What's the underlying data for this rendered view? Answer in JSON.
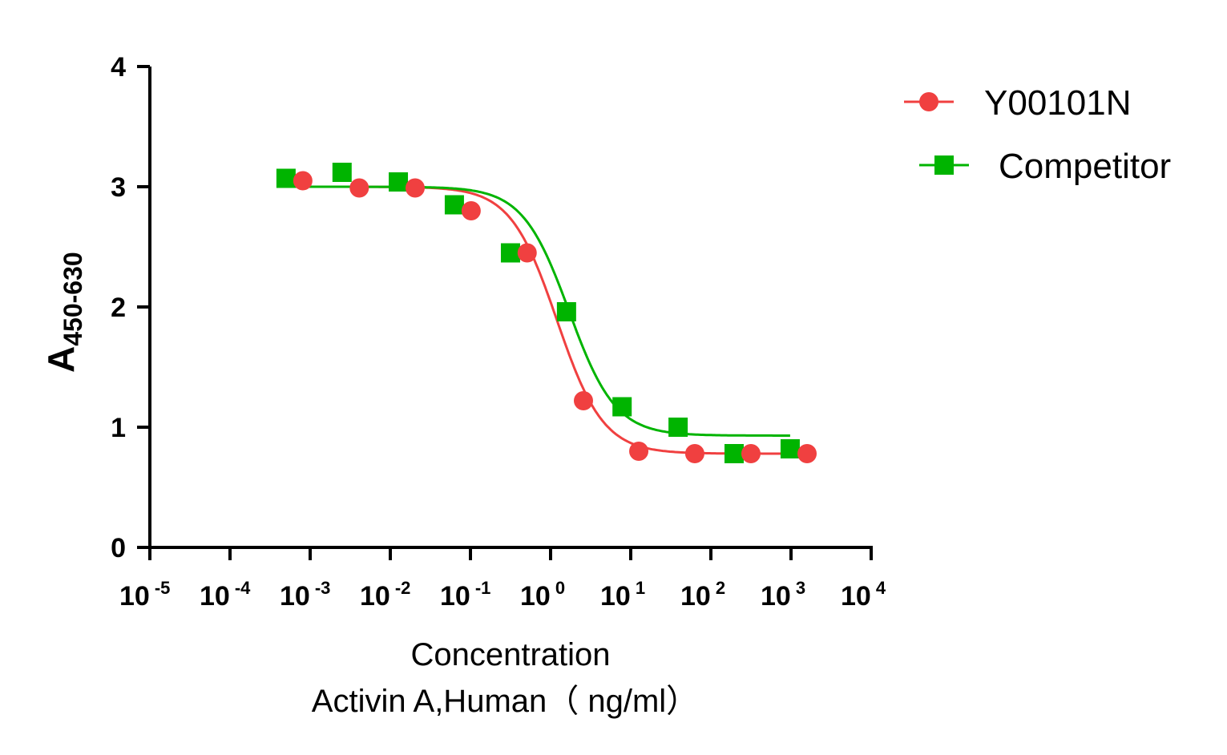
{
  "chart_data": {
    "type": "scatter",
    "x_scale": "log",
    "xlim": [
      1e-05,
      10000
    ],
    "ylim": [
      0,
      4
    ],
    "grid": false,
    "legend_position": "top-right",
    "ylabel_main": "A",
    "ylabel_sub": "450-630",
    "xlabel_line1": "Concentration",
    "xlabel_line2": "Activin A,Human（ ng/ml）",
    "x_ticks": [
      {
        "base": "10",
        "exp": "-5",
        "value": 1e-05
      },
      {
        "base": "10",
        "exp": "-4",
        "value": 0.0001
      },
      {
        "base": "10",
        "exp": "-3",
        "value": 0.001
      },
      {
        "base": "10",
        "exp": "-2",
        "value": 0.01
      },
      {
        "base": "10",
        "exp": "-1",
        "value": 0.1
      },
      {
        "base": "10",
        "exp": "0",
        "value": 1
      },
      {
        "base": "10",
        "exp": "1",
        "value": 10
      },
      {
        "base": "10",
        "exp": "2",
        "value": 100
      },
      {
        "base": "10",
        "exp": "3",
        "value": 1000
      },
      {
        "base": "10",
        "exp": "4",
        "value": 10000
      }
    ],
    "y_ticks": [
      "0",
      "1",
      "2",
      "3",
      "4"
    ],
    "series": [
      {
        "name": "Y00101N",
        "color": "#f04040",
        "marker": "circle",
        "x": [
          0.00081,
          0.0041,
          0.0204,
          0.102,
          0.51,
          2.57,
          12.6,
          63,
          316,
          1585
        ],
        "y": [
          3.05,
          2.99,
          2.99,
          2.8,
          2.45,
          1.22,
          0.8,
          0.78,
          0.78,
          0.78
        ],
        "fit": {
          "model": "4PL",
          "top": 3.0,
          "bottom": 0.78,
          "ec50": 1.2,
          "hill": 1.5,
          "x_range": [
            0.0005,
            1585
          ]
        }
      },
      {
        "name": "Competitor",
        "color": "#00b400",
        "marker": "square",
        "x": [
          0.0005,
          0.0025,
          0.0126,
          0.063,
          0.316,
          1.58,
          7.8,
          39,
          195,
          976
        ],
        "y": [
          3.07,
          3.12,
          3.04,
          2.85,
          2.45,
          1.96,
          1.17,
          1.0,
          0.78,
          0.82
        ],
        "fit": {
          "model": "4PL",
          "top": 3.0,
          "bottom": 0.93,
          "ec50": 1.7,
          "hill": 1.5,
          "x_range": [
            0.0005,
            976
          ]
        }
      }
    ]
  }
}
